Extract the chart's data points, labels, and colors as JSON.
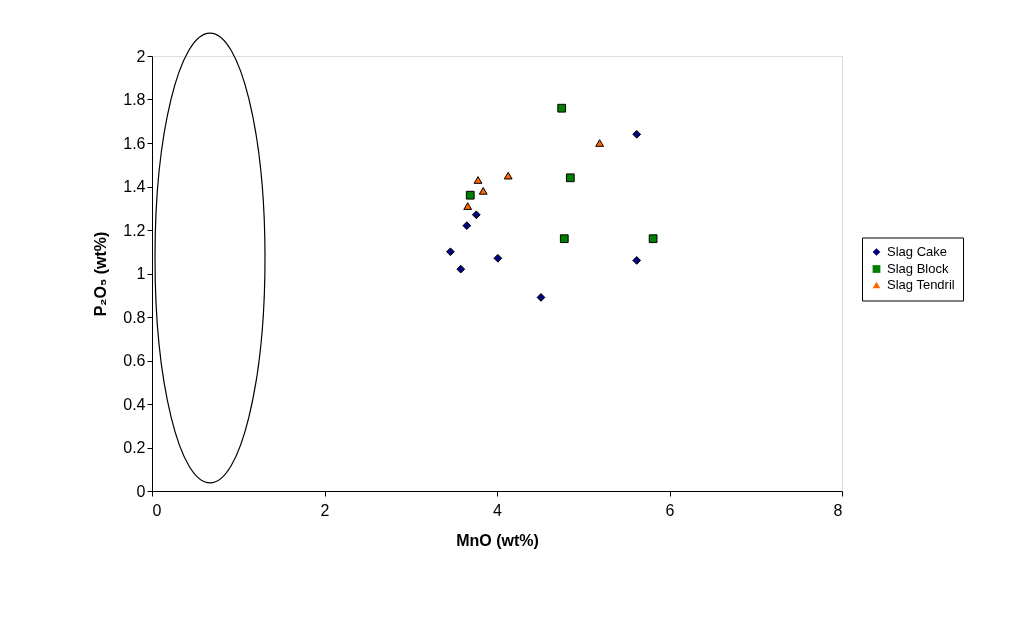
{
  "chart_data": {
    "type": "scatter",
    "xlabel": "MnO (wt%)",
    "ylabel": "P₂O₅ (wt%)",
    "xlim": [
      0,
      8
    ],
    "xticks": [
      0,
      2,
      4,
      6,
      8
    ],
    "ylim": [
      0,
      2
    ],
    "yticks": [
      0,
      0.2,
      0.4,
      0.6,
      0.8,
      1,
      1.2,
      1.4,
      1.6,
      1.8,
      2
    ],
    "grid": false,
    "legend": "right",
    "series": [
      {
        "name": "Slag Cake",
        "color": "#000080",
        "marker": "diamond",
        "x": [
          3.46,
          3.58,
          3.65,
          3.76,
          4.01,
          4.51,
          5.62,
          5.62
        ],
        "values": [
          1.1,
          1.02,
          1.22,
          1.27,
          1.07,
          0.89,
          1.64,
          1.06
        ]
      },
      {
        "name": "Slag Block",
        "color": "#008000",
        "marker": "square",
        "x": [
          3.69,
          4.75,
          4.85,
          4.78,
          5.81
        ],
        "values": [
          1.36,
          1.76,
          1.44,
          1.16,
          1.16
        ]
      },
      {
        "name": "Slag Tendril",
        "color": "#ff6600",
        "marker": "triangle",
        "x": [
          3.66,
          3.78,
          3.84,
          4.13,
          5.19
        ],
        "values": [
          1.31,
          1.43,
          1.38,
          1.45,
          1.6
        ]
      }
    ]
  }
}
